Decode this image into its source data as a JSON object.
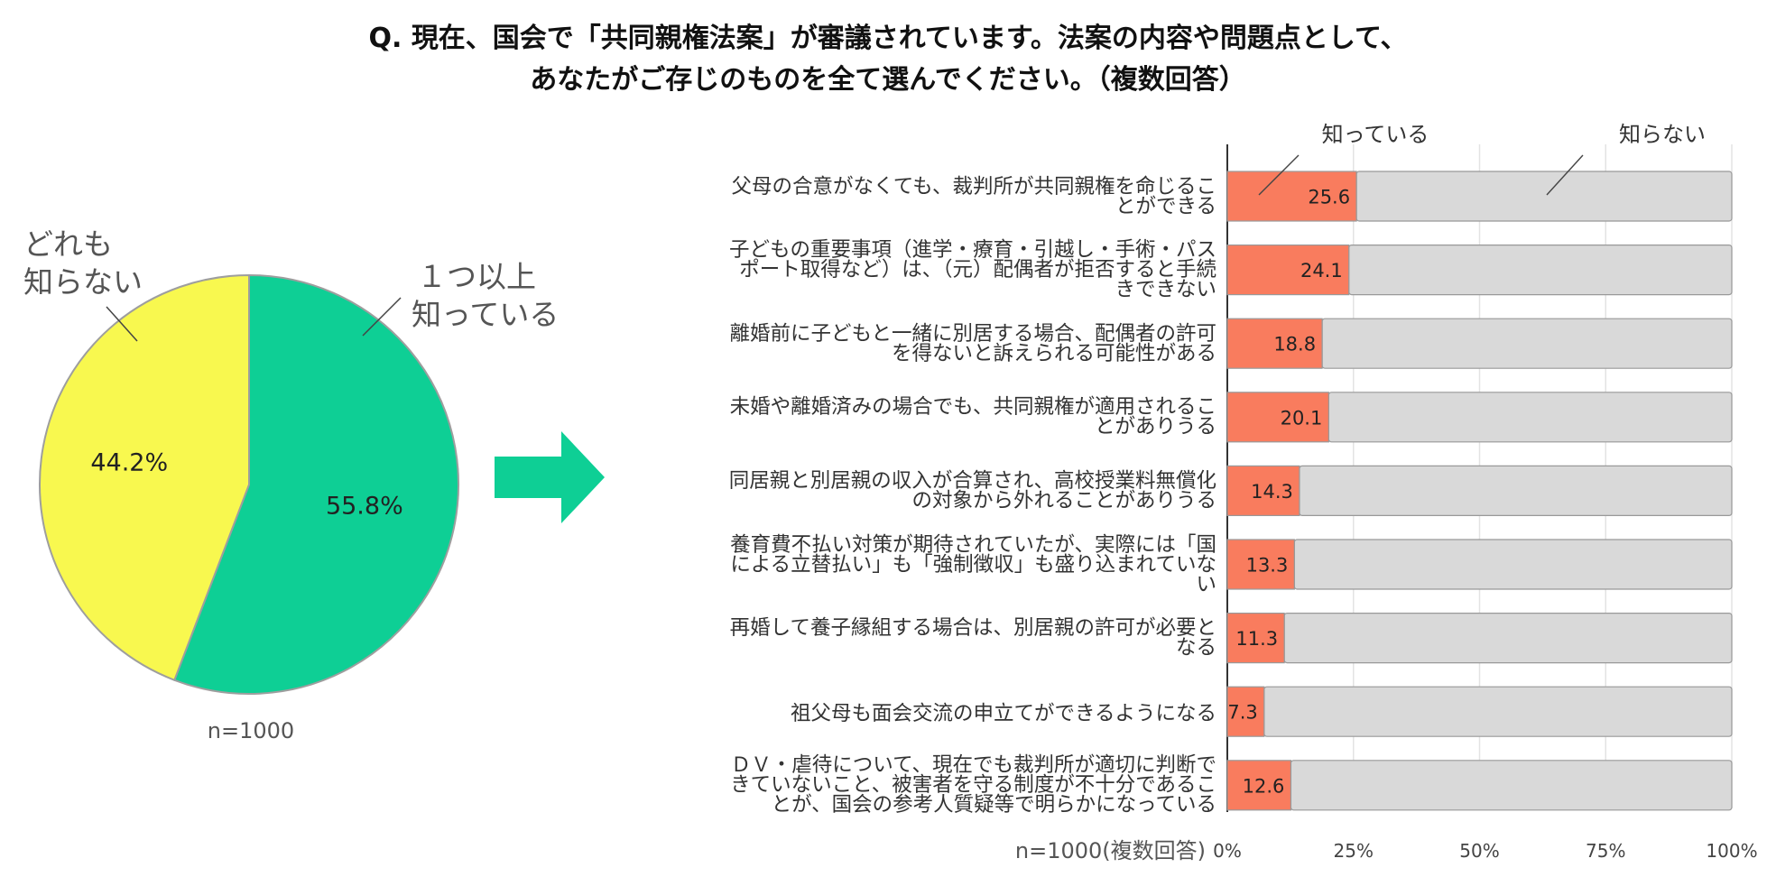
{
  "title_lines": [
    "Q. 現在、国会で「共同親権法案」が審議されています。法案の内容や問題点として、",
    "あなたがご存じのものを全て選んでください。（複数回答）"
  ],
  "pie": {
    "note": "n=1000",
    "slices": [
      {
        "label_lines": [
          "１つ以上",
          "知っている"
        ],
        "value": 55.8,
        "value_text": "55.8%",
        "color": "#0ecf95"
      },
      {
        "label_lines": [
          "どれも",
          "知らない"
        ],
        "value": 44.2,
        "value_text": "44.2%",
        "color": "#f8f84f"
      }
    ]
  },
  "bar": {
    "note": "n=1000(複数回答)",
    "legend": {
      "know": "知っている",
      "dont_know": "知らない"
    },
    "colors": {
      "know": "#f97c5e",
      "dont_know": "#d9d9d9",
      "outline": "#999999"
    }
  },
  "chart_data": [
    {
      "type": "pie",
      "categories": [
        "１つ以上知っている",
        "どれも知らない"
      ],
      "values": [
        55.8,
        44.2
      ],
      "unit": "%"
    },
    {
      "type": "bar",
      "orientation": "horizontal",
      "stacked": true,
      "categories": [
        [
          "父母の合意がなくても、裁判所が共同親権を命じるこ",
          "とができる"
        ],
        [
          "子どもの重要事項（進学・療育・引越し・手術・パス",
          "ポート取得など）は、（元）配偶者が拒否すると手続",
          "きできない"
        ],
        [
          "離婚前に子どもと一緒に別居する場合、配偶者の許可",
          "を得ないと訴えられる可能性がある"
        ],
        [
          "未婚や離婚済みの場合でも、共同親権が適用されるこ",
          "とがありうる"
        ],
        [
          "同居親と別居親の収入が合算され、高校授業料無償化",
          "の対象から外れることがありうる"
        ],
        [
          "養育費不払い対策が期待されていたが、実際には「国",
          "による立替払い」も「強制徴収」も盛り込まれていな",
          "い"
        ],
        [
          "再婚して養子縁組する場合は、別居親の許可が必要と",
          "なる"
        ],
        [
          "祖父母も面会交流の申立てができるようになる"
        ],
        [
          "ＤＶ・虐待について、現在でも裁判所が適切に判断で",
          "きていないこと、被害者を守る制度が不十分であるこ",
          "とが、国会の参考人質疑等で明らかになっている"
        ]
      ],
      "series": [
        {
          "name": "知っている",
          "values": [
            25.6,
            24.1,
            18.8,
            20.1,
            14.3,
            13.3,
            11.3,
            7.3,
            12.6
          ],
          "labels": [
            "25.6",
            "24.1",
            "18.8",
            "20.1",
            "14.3",
            "13.3",
            "11.3",
            "7.3",
            "12.6"
          ]
        },
        {
          "name": "知らない",
          "values": [
            74.4,
            75.9,
            81.2,
            79.9,
            85.7,
            86.7,
            88.7,
            92.7,
            87.4
          ]
        }
      ],
      "xlim": [
        0,
        100
      ],
      "xticks": [
        "0%",
        "25%",
        "50%",
        "75%",
        "100%"
      ],
      "grid": true
    }
  ]
}
